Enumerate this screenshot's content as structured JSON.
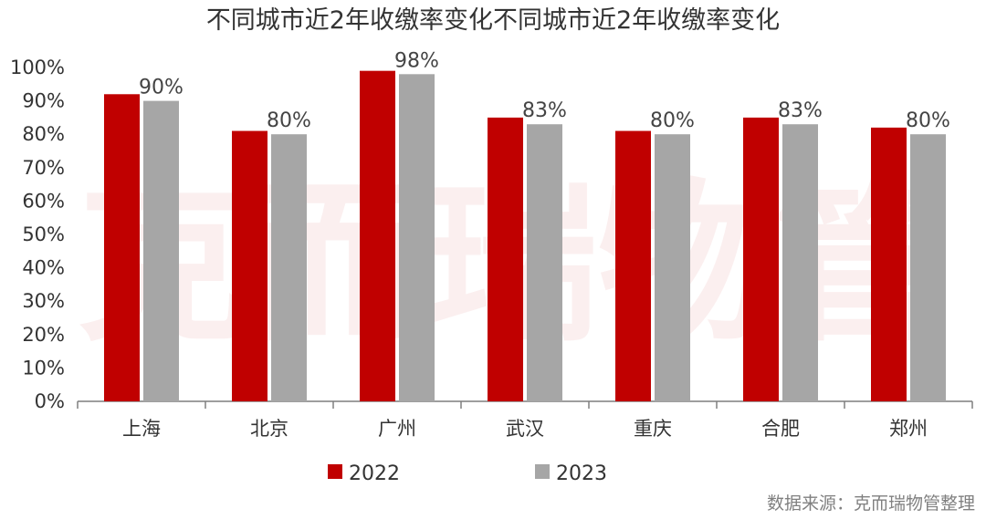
{
  "title": "不同城市近2年收缴率变化不同城市近2年收缴率变化",
  "watermark": "克而瑞物管",
  "source": "数据来源：克而瑞物管整理",
  "colors": {
    "s2022": "#c00000",
    "s2023": "#a6a6a6"
  },
  "chart_data": {
    "type": "bar",
    "title": "不同城市近2年收缴率变化不同城市近2年收缴率变化",
    "categories": [
      "上海",
      "北京",
      "广州",
      "武汉",
      "重庆",
      "合肥",
      "郑州"
    ],
    "series": [
      {
        "name": "2022",
        "values": [
          92,
          81,
          99,
          85,
          81,
          85,
          82
        ]
      },
      {
        "name": "2023",
        "values": [
          90,
          80,
          98,
          83,
          80,
          83,
          80
        ]
      }
    ],
    "data_labels": [
      "90%",
      "80%",
      "98%",
      "83%",
      "80%",
      "83%",
      "80%"
    ],
    "ylim": [
      0,
      100
    ],
    "yticks": [
      "0%",
      "10%",
      "20%",
      "30%",
      "40%",
      "50%",
      "60%",
      "70%",
      "80%",
      "90%",
      "100%"
    ],
    "legend": [
      "2022",
      "2023"
    ],
    "legend_position": "bottom",
    "grid": false
  }
}
